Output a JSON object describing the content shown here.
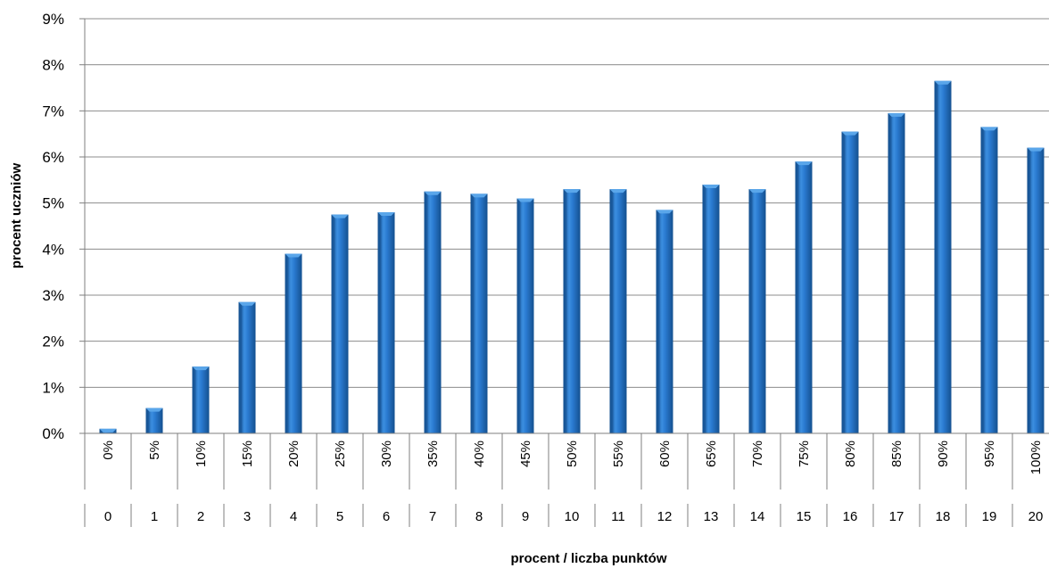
{
  "chart_data": {
    "type": "bar",
    "xlabel": "procent / liczba punktów",
    "ylabel": "procent  uczniów",
    "ylim": [
      0,
      9
    ],
    "y_ticks": [
      "0%",
      "1%",
      "2%",
      "3%",
      "4%",
      "5%",
      "6%",
      "7%",
      "8%",
      "9%"
    ],
    "grid": true,
    "categories_percent": [
      "0%",
      "5%",
      "10%",
      "15%",
      "20%",
      "25%",
      "30%",
      "35%",
      "40%",
      "45%",
      "50%",
      "55%",
      "60%",
      "65%",
      "70%",
      "75%",
      "80%",
      "85%",
      "90%",
      "95%",
      "100%"
    ],
    "categories_points": [
      "0",
      "1",
      "2",
      "3",
      "4",
      "5",
      "6",
      "7",
      "8",
      "9",
      "10",
      "11",
      "12",
      "13",
      "14",
      "15",
      "16",
      "17",
      "18",
      "19",
      "20"
    ],
    "values": [
      0.1,
      0.55,
      1.45,
      2.85,
      3.9,
      4.75,
      4.8,
      5.25,
      5.2,
      5.1,
      5.3,
      5.3,
      4.85,
      5.4,
      5.3,
      5.9,
      6.55,
      6.95,
      7.65,
      6.65,
      6.2
    ],
    "colors": {
      "bar": "#1f6fc1",
      "bar_light": "#5aa6ea",
      "bar_dark": "#14508f",
      "grid": "#8c8c8c"
    }
  }
}
